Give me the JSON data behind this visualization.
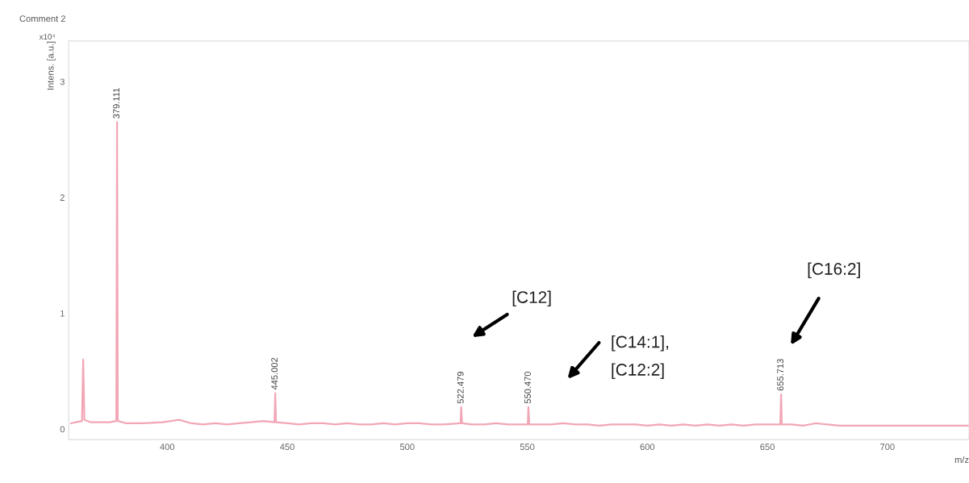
{
  "chart_data": {
    "type": "line",
    "title": "Comment 2",
    "xlabel": "m/z",
    "ylabel": "Intens. [a.u.]",
    "xlim": [
      359,
      734
    ],
    "ylim": [
      -0.09,
      3.35
    ],
    "xticks": [
      400,
      450,
      500,
      550,
      600,
      650,
      700
    ],
    "yticks": [
      0,
      1,
      2,
      3
    ],
    "grid": false,
    "line_style": "solid",
    "marker": "none",
    "series": [
      {
        "color": "#f2a6b6",
        "x": [
          360,
          362,
          364.5,
          365,
          365.5,
          368,
          372,
          376,
          378.8,
          379.111,
          379.4,
          383,
          390,
          398,
          405,
          410,
          415,
          420,
          425,
          430,
          435,
          440,
          444.7,
          445.002,
          445.3,
          450,
          455,
          460,
          465,
          470,
          475,
          480,
          485,
          490,
          495,
          500,
          505,
          510,
          515,
          522.2,
          522.479,
          522.8,
          527,
          532,
          537,
          542,
          550.2,
          550.47,
          550.8,
          555,
          560,
          565,
          570,
          575,
          580,
          585,
          590,
          595,
          600,
          605,
          610,
          615,
          620,
          625,
          630,
          635,
          640,
          645,
          650,
          655.4,
          655.713,
          656,
          660,
          665,
          670,
          675,
          680,
          685,
          690,
          695,
          700,
          705,
          710,
          715,
          720,
          725,
          730,
          734
        ],
        "values": [
          0.05,
          0.06,
          0.07,
          0.6,
          0.08,
          0.06,
          0.06,
          0.06,
          0.07,
          2.65,
          0.07,
          0.05,
          0.05,
          0.06,
          0.08,
          0.05,
          0.04,
          0.05,
          0.04,
          0.05,
          0.06,
          0.07,
          0.06,
          0.31,
          0.06,
          0.05,
          0.04,
          0.05,
          0.05,
          0.04,
          0.05,
          0.04,
          0.04,
          0.05,
          0.04,
          0.05,
          0.05,
          0.04,
          0.04,
          0.05,
          0.19,
          0.05,
          0.04,
          0.04,
          0.05,
          0.04,
          0.04,
          0.19,
          0.04,
          0.04,
          0.04,
          0.05,
          0.04,
          0.04,
          0.03,
          0.04,
          0.04,
          0.04,
          0.03,
          0.04,
          0.03,
          0.04,
          0.03,
          0.04,
          0.03,
          0.04,
          0.03,
          0.04,
          0.04,
          0.04,
          0.3,
          0.04,
          0.04,
          0.03,
          0.05,
          0.04,
          0.03,
          0.03,
          0.03,
          0.03,
          0.03,
          0.03,
          0.03,
          0.03,
          0.03,
          0.03,
          0.03,
          0.03
        ]
      }
    ],
    "annotations": [
      "x10⁴",
      {
        "text": "379.111",
        "x": 379.111,
        "y": 2.65
      },
      {
        "text": "445.002",
        "x": 445.002,
        "y": 0.31
      },
      {
        "text": "522.479",
        "x": 522.479,
        "y": 0.19
      },
      {
        "text": "550.470",
        "x": 550.47,
        "y": 0.19
      },
      {
        "text": "655.713",
        "x": 655.713,
        "y": 0.3
      },
      "[C12]",
      "[C14:1],\n[C12:2]",
      "[C16:2]"
    ]
  }
}
